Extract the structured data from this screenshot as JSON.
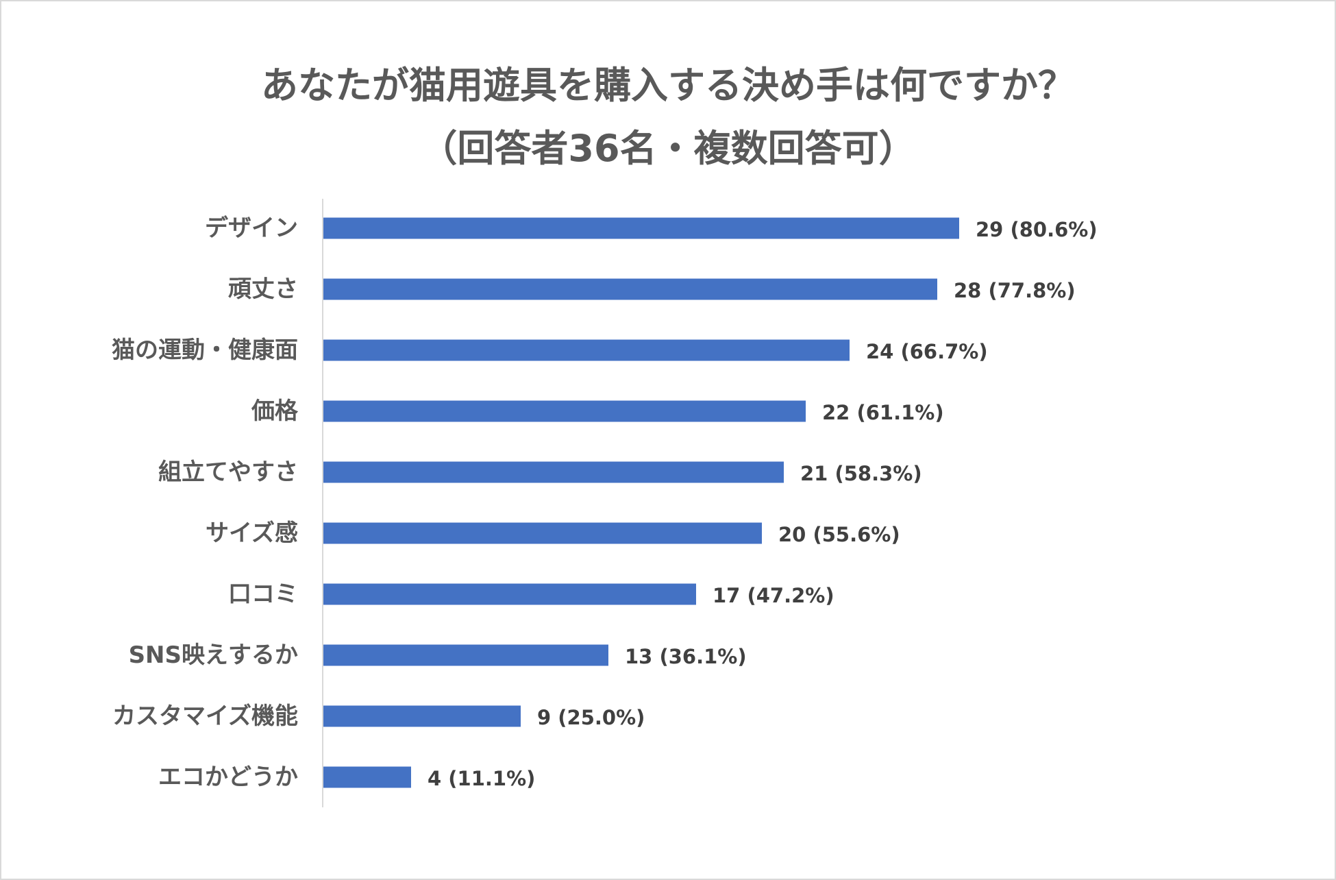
{
  "chart_data": {
    "type": "bar",
    "orientation": "horizontal",
    "title": "あなたが猫用遊具を購入する決め手は何ですか？",
    "subtitle": "（回答者36名・複数回答可）",
    "categories": [
      "デザイン",
      "頑丈さ",
      "猫の運動・健康面",
      "価格",
      "組立てやすさ",
      "サイズ感",
      "口コミ",
      "SNS映えするか",
      "カスタマイズ機能",
      "エコかどうか"
    ],
    "values": [
      29,
      28,
      24,
      22,
      21,
      20,
      17,
      13,
      9,
      4
    ],
    "data_labels": [
      "29 (80.6%)",
      "28 (77.8%)",
      "24 (66.7%)",
      "22 (61.1%)",
      "21 (58.3%)",
      "20 (55.6%)",
      "17 (47.2%)",
      "13 (36.1%)",
      "9 (25.0%)",
      "4 (11.1%)"
    ],
    "xlim": [
      0,
      30
    ],
    "xlabel": "",
    "ylabel": "",
    "grid": false,
    "legend": "none",
    "colors": {
      "bar": "#4472c4",
      "axis": "#d9d9d9",
      "title": "#595959",
      "label": "#595959",
      "data_label": "#404040"
    }
  }
}
